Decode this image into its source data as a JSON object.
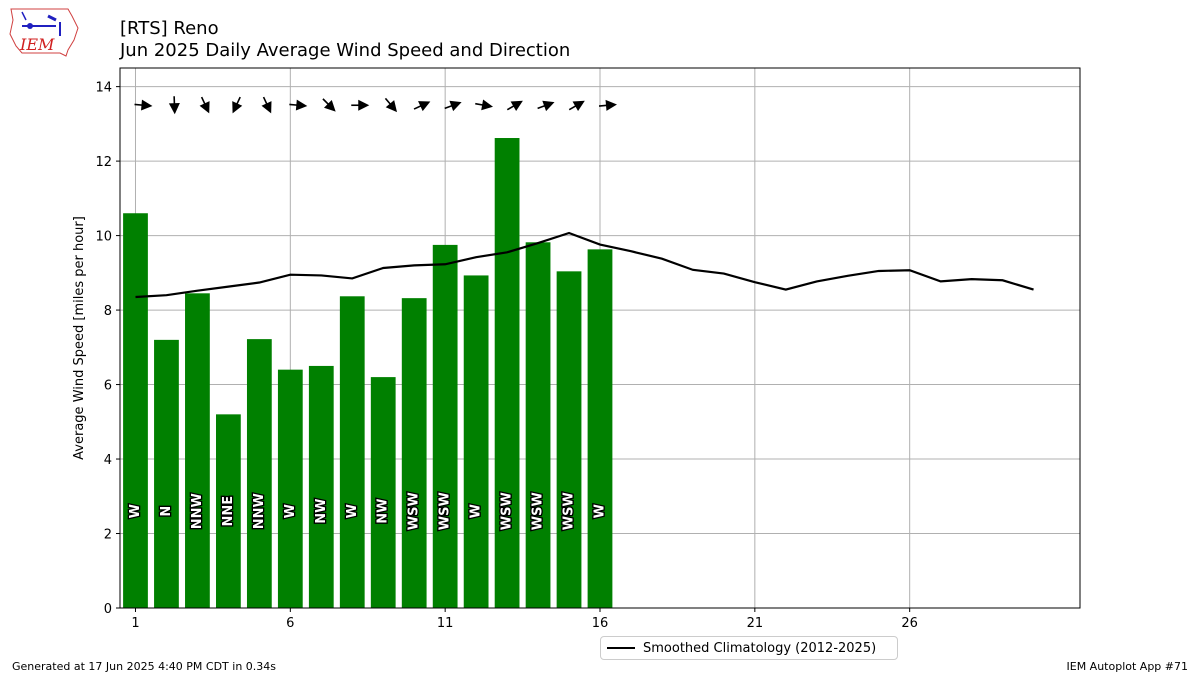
{
  "header": {
    "logo_text": "IEM",
    "title_line1": "[RTS] Reno",
    "title_line2": "Jun 2025 Daily Average Wind Speed and Direction"
  },
  "footer": {
    "generated": "Generated at 17 Jun 2025 4:40 PM CDT in 0.34s",
    "app": "IEM Autoplot App #71"
  },
  "legend": {
    "climatology_label": "Smoothed Climatology (2012-2025)"
  },
  "colors": {
    "bar": "#008000",
    "line": "#000000",
    "grid": "#b0b0b0"
  },
  "chart_data": {
    "type": "bar",
    "ylabel": "Average Wind Speed [miles per hour]",
    "xlim": [
      0.5,
      31.5
    ],
    "ylim": [
      0,
      14.5
    ],
    "xticks": [
      1,
      6,
      11,
      16,
      21,
      26
    ],
    "yticks": [
      0,
      2,
      4,
      6,
      8,
      10,
      12,
      14
    ],
    "grid": true,
    "legend_position": "bottom-center",
    "days": [
      1,
      2,
      3,
      4,
      5,
      6,
      7,
      8,
      9,
      10,
      11,
      12,
      13,
      14,
      15,
      16
    ],
    "values": [
      10.6,
      7.2,
      8.45,
      5.2,
      7.22,
      6.4,
      6.5,
      8.37,
      6.2,
      8.32,
      9.75,
      8.93,
      12.62,
      9.82,
      9.04,
      9.63
    ],
    "direction_labels": [
      "W",
      "N",
      "NNW",
      "NNE",
      "NNW",
      "W",
      "NW",
      "W",
      "NW",
      "WSW",
      "WSW",
      "W",
      "WSW",
      "WSW",
      "WSW",
      "W"
    ],
    "arrow_direction_deg": [
      275,
      358,
      335,
      25,
      335,
      275,
      315,
      270,
      320,
      245,
      250,
      280,
      240,
      250,
      240,
      265
    ],
    "climatology": {
      "name": "Smoothed Climatology (2012-2025)",
      "x": [
        1,
        2,
        3,
        4,
        5,
        6,
        7,
        8,
        9,
        10,
        11,
        12,
        13,
        14,
        15,
        16,
        17,
        18,
        19,
        20,
        21,
        22,
        23,
        24,
        25,
        26,
        27,
        28,
        29,
        30
      ],
      "y": [
        8.35,
        8.4,
        8.52,
        8.63,
        8.74,
        8.95,
        8.93,
        8.85,
        9.13,
        9.2,
        9.23,
        9.42,
        9.55,
        9.8,
        10.07,
        9.76,
        9.58,
        9.38,
        9.08,
        8.98,
        8.75,
        8.55,
        8.77,
        8.92,
        9.05,
        9.07,
        8.77,
        8.83,
        8.8,
        8.55
      ]
    }
  }
}
